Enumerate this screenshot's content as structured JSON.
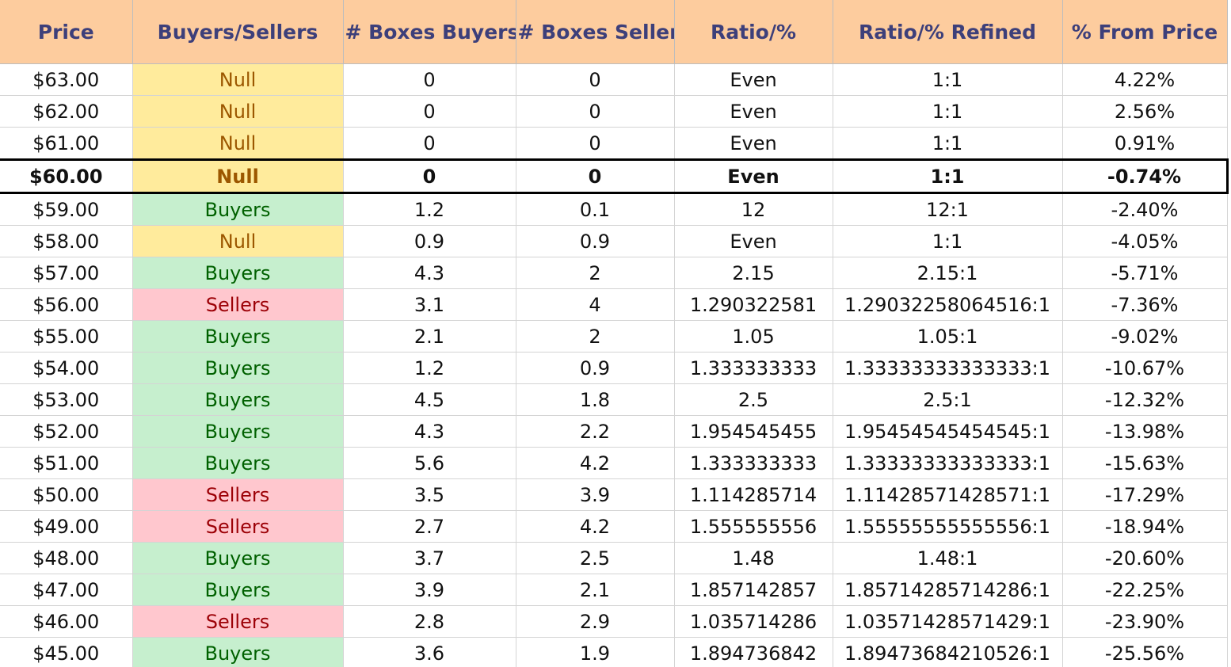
{
  "table": {
    "headers": [
      "Price",
      "Buyers/Sellers",
      "# Boxes Buyers",
      "# Boxes Sellers",
      "Ratio/%",
      "Ratio/% Refined",
      "% From Price"
    ],
    "current_price_row": 3,
    "signal_colors": {
      "Buyers": {
        "bg": "#c6efce",
        "fg": "#006100"
      },
      "Sellers": {
        "bg": "#ffc7ce",
        "fg": "#9c0006"
      },
      "Null": {
        "bg": "#ffeb9c",
        "fg": "#9c5700"
      }
    },
    "header_bg": "#fdcc9e",
    "header_fg": "#3d3f7a",
    "rows": [
      {
        "price": "$63.00",
        "signal": "Null",
        "boxes_buyers": "0",
        "boxes_sellers": "0",
        "ratio": "Even",
        "ratio_refined": "1:1",
        "from_price": "4.22%"
      },
      {
        "price": "$62.00",
        "signal": "Null",
        "boxes_buyers": "0",
        "boxes_sellers": "0",
        "ratio": "Even",
        "ratio_refined": "1:1",
        "from_price": "2.56%"
      },
      {
        "price": "$61.00",
        "signal": "Null",
        "boxes_buyers": "0",
        "boxes_sellers": "0",
        "ratio": "Even",
        "ratio_refined": "1:1",
        "from_price": "0.91%"
      },
      {
        "price": "$60.00",
        "signal": "Null",
        "boxes_buyers": "0",
        "boxes_sellers": "0",
        "ratio": "Even",
        "ratio_refined": "1:1",
        "from_price": "-0.74%"
      },
      {
        "price": "$59.00",
        "signal": "Buyers",
        "boxes_buyers": "1.2",
        "boxes_sellers": "0.1",
        "ratio": "12",
        "ratio_refined": "12:1",
        "from_price": "-2.40%"
      },
      {
        "price": "$58.00",
        "signal": "Null",
        "boxes_buyers": "0.9",
        "boxes_sellers": "0.9",
        "ratio": "Even",
        "ratio_refined": "1:1",
        "from_price": "-4.05%"
      },
      {
        "price": "$57.00",
        "signal": "Buyers",
        "boxes_buyers": "4.3",
        "boxes_sellers": "2",
        "ratio": "2.15",
        "ratio_refined": "2.15:1",
        "from_price": "-5.71%"
      },
      {
        "price": "$56.00",
        "signal": "Sellers",
        "boxes_buyers": "3.1",
        "boxes_sellers": "4",
        "ratio": "1.290322581",
        "ratio_refined": "1.29032258064516:1",
        "from_price": "-7.36%"
      },
      {
        "price": "$55.00",
        "signal": "Buyers",
        "boxes_buyers": "2.1",
        "boxes_sellers": "2",
        "ratio": "1.05",
        "ratio_refined": "1.05:1",
        "from_price": "-9.02%"
      },
      {
        "price": "$54.00",
        "signal": "Buyers",
        "boxes_buyers": "1.2",
        "boxes_sellers": "0.9",
        "ratio": "1.333333333",
        "ratio_refined": "1.33333333333333:1",
        "from_price": "-10.67%"
      },
      {
        "price": "$53.00",
        "signal": "Buyers",
        "boxes_buyers": "4.5",
        "boxes_sellers": "1.8",
        "ratio": "2.5",
        "ratio_refined": "2.5:1",
        "from_price": "-12.32%"
      },
      {
        "price": "$52.00",
        "signal": "Buyers",
        "boxes_buyers": "4.3",
        "boxes_sellers": "2.2",
        "ratio": "1.954545455",
        "ratio_refined": "1.95454545454545:1",
        "from_price": "-13.98%"
      },
      {
        "price": "$51.00",
        "signal": "Buyers",
        "boxes_buyers": "5.6",
        "boxes_sellers": "4.2",
        "ratio": "1.333333333",
        "ratio_refined": "1.33333333333333:1",
        "from_price": "-15.63%"
      },
      {
        "price": "$50.00",
        "signal": "Sellers",
        "boxes_buyers": "3.5",
        "boxes_sellers": "3.9",
        "ratio": "1.114285714",
        "ratio_refined": "1.11428571428571:1",
        "from_price": "-17.29%"
      },
      {
        "price": "$49.00",
        "signal": "Sellers",
        "boxes_buyers": "2.7",
        "boxes_sellers": "4.2",
        "ratio": "1.555555556",
        "ratio_refined": "1.55555555555556:1",
        "from_price": "-18.94%"
      },
      {
        "price": "$48.00",
        "signal": "Buyers",
        "boxes_buyers": "3.7",
        "boxes_sellers": "2.5",
        "ratio": "1.48",
        "ratio_refined": "1.48:1",
        "from_price": "-20.60%"
      },
      {
        "price": "$47.00",
        "signal": "Buyers",
        "boxes_buyers": "3.9",
        "boxes_sellers": "2.1",
        "ratio": "1.857142857",
        "ratio_refined": "1.85714285714286:1",
        "from_price": "-22.25%"
      },
      {
        "price": "$46.00",
        "signal": "Sellers",
        "boxes_buyers": "2.8",
        "boxes_sellers": "2.9",
        "ratio": "1.035714286",
        "ratio_refined": "1.03571428571429:1",
        "from_price": "-23.90%"
      },
      {
        "price": "$45.00",
        "signal": "Buyers",
        "boxes_buyers": "3.6",
        "boxes_sellers": "1.9",
        "ratio": "1.894736842",
        "ratio_refined": "1.89473684210526:1",
        "from_price": "-25.56%"
      }
    ]
  }
}
